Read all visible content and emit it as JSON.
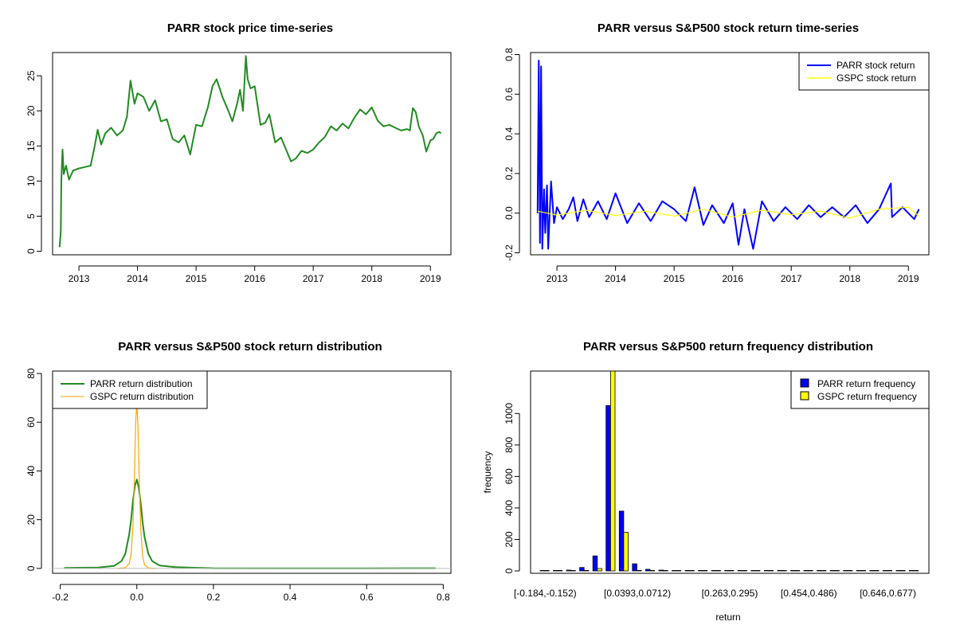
{
  "chart_data": [
    {
      "id": "price",
      "type": "line",
      "title": "PARR stock price time-series",
      "xlabel": "",
      "ylabel": "",
      "xlim": [
        2012.55,
        2019.35
      ],
      "ylim": [
        -0.5,
        28.3
      ],
      "x_ticks": [
        2013,
        2014,
        2015,
        2016,
        2017,
        2018,
        2019
      ],
      "x_tick_labels": [
        "2013",
        "2014",
        "2015",
        "2016",
        "2017",
        "2018",
        "2019"
      ],
      "y_ticks": [
        0,
        5,
        10,
        15,
        20,
        25
      ],
      "y_tick_labels": [
        "0",
        "5",
        "10",
        "15",
        "20",
        "25"
      ],
      "series": [
        {
          "name": "PARR",
          "color": "#228b22",
          "x": [
            2012.67,
            2012.69,
            2012.7,
            2012.72,
            2012.74,
            2012.78,
            2012.83,
            2012.9,
            2013.0,
            2013.1,
            2013.2,
            2013.27,
            2013.32,
            2013.38,
            2013.45,
            2013.55,
            2013.65,
            2013.75,
            2013.82,
            2013.88,
            2013.95,
            2014.0,
            2014.1,
            2014.2,
            2014.3,
            2014.4,
            2014.5,
            2014.6,
            2014.7,
            2014.8,
            2014.9,
            2015.0,
            2015.1,
            2015.2,
            2015.28,
            2015.35,
            2015.45,
            2015.55,
            2015.62,
            2015.7,
            2015.75,
            2015.8,
            2015.85,
            2015.88,
            2015.93,
            2016.0,
            2016.1,
            2016.18,
            2016.25,
            2016.35,
            2016.45,
            2016.55,
            2016.62,
            2016.7,
            2016.8,
            2016.9,
            2017.0,
            2017.1,
            2017.2,
            2017.3,
            2017.4,
            2017.5,
            2017.6,
            2017.7,
            2017.8,
            2017.9,
            2018.0,
            2018.1,
            2018.2,
            2018.3,
            2018.4,
            2018.5,
            2018.6,
            2018.65,
            2018.7,
            2018.75,
            2018.8,
            2018.87,
            2018.93,
            2019.0,
            2019.05,
            2019.1,
            2019.15,
            2019.18
          ],
          "y": [
            0.6,
            2.8,
            10.2,
            14.5,
            11.0,
            12.2,
            10.2,
            11.5,
            11.8,
            12.0,
            12.2,
            15.0,
            17.3,
            15.2,
            16.8,
            17.6,
            16.5,
            17.2,
            19.2,
            24.3,
            21.0,
            22.5,
            22.0,
            20.0,
            21.5,
            18.5,
            18.8,
            16.0,
            15.5,
            16.5,
            13.8,
            18.0,
            17.8,
            20.5,
            23.5,
            24.5,
            22.0,
            20.0,
            18.5,
            21.0,
            23.0,
            20.0,
            27.8,
            24.5,
            23.2,
            23.5,
            18.0,
            18.3,
            19.5,
            15.5,
            16.2,
            14.2,
            12.8,
            13.2,
            14.3,
            14.0,
            14.5,
            15.5,
            16.3,
            17.8,
            17.2,
            18.2,
            17.5,
            19.0,
            20.2,
            19.5,
            20.5,
            18.6,
            17.8,
            18.0,
            17.6,
            17.2,
            17.4,
            17.2,
            20.4,
            19.8,
            17.8,
            16.5,
            14.2,
            15.8,
            16.0,
            16.8,
            17.0,
            16.8
          ]
        }
      ]
    },
    {
      "id": "returns",
      "type": "line",
      "title": "PARR versus S&P500 stock return time-series",
      "xlabel": "",
      "ylabel": "",
      "xlim": [
        2012.55,
        2019.35
      ],
      "ylim": [
        -0.21,
        0.81
      ],
      "x_ticks": [
        2013,
        2014,
        2015,
        2016,
        2017,
        2018,
        2019
      ],
      "x_tick_labels": [
        "2013",
        "2014",
        "2015",
        "2016",
        "2017",
        "2018",
        "2019"
      ],
      "y_ticks": [
        -0.2,
        0.0,
        0.2,
        0.4,
        0.6,
        0.8
      ],
      "y_tick_labels": [
        "-0.2",
        "0.0",
        "0.2",
        "0.4",
        "0.6",
        "0.8"
      ],
      "legend": {
        "position": "top-right",
        "entries": [
          {
            "label": "PARR stock return",
            "color": "#0000ff"
          },
          {
            "label": "GSPC stock return",
            "color": "#ffff00"
          }
        ]
      },
      "series": [
        {
          "name": "PARR stock return",
          "color": "#0000ff",
          "x": [
            2012.67,
            2012.69,
            2012.71,
            2012.73,
            2012.75,
            2012.78,
            2012.8,
            2012.83,
            2012.85,
            2012.9,
            2012.95,
            2013.0,
            2013.1,
            2013.2,
            2013.28,
            2013.35,
            2013.45,
            2013.55,
            2013.7,
            2013.85,
            2014.0,
            2014.2,
            2014.4,
            2014.6,
            2014.8,
            2015.0,
            2015.2,
            2015.35,
            2015.5,
            2015.65,
            2015.85,
            2016.0,
            2016.1,
            2016.2,
            2016.35,
            2016.5,
            2016.7,
            2016.9,
            2017.1,
            2017.3,
            2017.5,
            2017.7,
            2017.9,
            2018.1,
            2018.3,
            2018.5,
            2018.7,
            2018.72,
            2018.9,
            2019.1,
            2019.18
          ],
          "y": [
            0.0,
            0.77,
            -0.15,
            0.74,
            -0.18,
            0.12,
            -0.1,
            0.14,
            -0.18,
            0.16,
            -0.05,
            0.03,
            -0.03,
            0.02,
            0.08,
            -0.04,
            0.07,
            -0.02,
            0.06,
            -0.03,
            0.1,
            -0.05,
            0.05,
            -0.04,
            0.06,
            0.02,
            -0.04,
            0.13,
            -0.06,
            0.04,
            -0.05,
            0.05,
            -0.16,
            0.02,
            -0.18,
            0.06,
            -0.04,
            0.03,
            -0.03,
            0.04,
            -0.02,
            0.03,
            -0.02,
            0.04,
            -0.05,
            0.02,
            0.15,
            -0.02,
            0.03,
            -0.03,
            0.02
          ]
        },
        {
          "name": "GSPC stock return",
          "color": "#ffff00",
          "x": [
            2012.67,
            2013.0,
            2013.5,
            2014.0,
            2014.5,
            2015.0,
            2015.5,
            2016.0,
            2016.5,
            2017.0,
            2017.5,
            2018.0,
            2018.5,
            2019.0,
            2019.18
          ],
          "y": [
            0.01,
            -0.01,
            0.015,
            -0.012,
            0.01,
            -0.015,
            0.02,
            -0.02,
            0.015,
            -0.008,
            0.01,
            -0.025,
            0.02,
            0.03,
            -0.015
          ]
        }
      ]
    },
    {
      "id": "distribution",
      "type": "line",
      "title": "PARR versus S&P500 stock return distribution",
      "xlabel": "",
      "ylabel": "",
      "xlim": [
        -0.22,
        0.82
      ],
      "ylim": [
        -2,
        81
      ],
      "x_ticks": [
        -0.2,
        0.0,
        0.2,
        0.4,
        0.6,
        0.8
      ],
      "x_tick_labels": [
        "-0.2",
        "0.0",
        "0.2",
        "0.4",
        "0.6",
        "0.8"
      ],
      "y_ticks": [
        0,
        20,
        40,
        60,
        80
      ],
      "y_tick_labels": [
        "0",
        "20",
        "40",
        "60",
        "80"
      ],
      "legend": {
        "position": "top-left",
        "entries": [
          {
            "label": "PARR return distribution",
            "color": "#228b22"
          },
          {
            "label": "GSPC return distribution",
            "color": "#ffa500"
          }
        ]
      },
      "series": [
        {
          "name": "PARR return distribution",
          "color": "#228b22",
          "x": [
            -0.19,
            -0.1,
            -0.06,
            -0.04,
            -0.03,
            -0.02,
            -0.015,
            -0.01,
            -0.005,
            0.0,
            0.005,
            0.01,
            0.015,
            0.02,
            0.03,
            0.04,
            0.06,
            0.1,
            0.15,
            0.2,
            0.4,
            0.6,
            0.78
          ],
          "y": [
            0.2,
            0.4,
            1.0,
            3.0,
            6.0,
            14.0,
            20.0,
            28.0,
            34.0,
            36.5,
            33.0,
            27.0,
            19.0,
            13.0,
            6.0,
            3.0,
            1.2,
            0.5,
            0.3,
            0.1,
            0.05,
            0.05,
            0.1
          ]
        },
        {
          "name": "GSPC return distribution",
          "color": "#ffa500",
          "x": [
            -0.05,
            -0.03,
            -0.02,
            -0.015,
            -0.01,
            -0.006,
            -0.003,
            0.0,
            0.003,
            0.006,
            0.01,
            0.015,
            0.02,
            0.03,
            0.05
          ],
          "y": [
            0.0,
            0.3,
            2.0,
            6.0,
            18.0,
            40.0,
            60.0,
            68.0,
            58.0,
            38.0,
            17.0,
            5.0,
            1.5,
            0.2,
            0.0
          ]
        },
        {
          "name": "baseline",
          "color": "#bebebe",
          "x": [
            -0.22,
            0.82
          ],
          "y": [
            0,
            0
          ]
        }
      ]
    },
    {
      "id": "frequency",
      "type": "bar",
      "title": "PARR versus S&P500 return frequency distribution",
      "xlabel": "return",
      "ylabel": "frequency",
      "ylim": [
        0,
        1300
      ],
      "y_ticks": [
        0,
        200,
        400,
        600,
        800,
        1000
      ],
      "y_tick_labels": [
        "0",
        "200",
        "400",
        "600",
        "800",
        "1000"
      ],
      "x_tick_labels": [
        "[-0.184,-0.152)",
        "[0.0393,0.0712)",
        "[0.263,0.295)",
        "[0.454,0.486)",
        "[0.646,0.677)"
      ],
      "x_tick_bins": [
        0,
        7,
        14,
        20,
        26
      ],
      "legend": {
        "position": "top-right",
        "entries": [
          {
            "label": "PARR return frequency",
            "color": "#0000ff"
          },
          {
            "label": "GSPC return frequency",
            "color": "#ffff00"
          }
        ]
      },
      "series": [
        {
          "name": "PARR return frequency",
          "color": "#0000ff",
          "values": [
            3,
            3,
            5,
            22,
            95,
            1050,
            380,
            45,
            10,
            5,
            3,
            2,
            1,
            1,
            1,
            0,
            0,
            1,
            0,
            0,
            0,
            0,
            0,
            0,
            0,
            0,
            0,
            0,
            1
          ]
        },
        {
          "name": "GSPC return frequency",
          "color": "#ffff00",
          "values": [
            0,
            0,
            0,
            0,
            15,
            1300,
            245,
            0,
            0,
            0,
            0,
            0,
            0,
            0,
            0,
            0,
            0,
            0,
            0,
            0,
            0,
            0,
            0,
            0,
            0,
            0,
            0,
            0,
            0
          ]
        }
      ]
    }
  ]
}
